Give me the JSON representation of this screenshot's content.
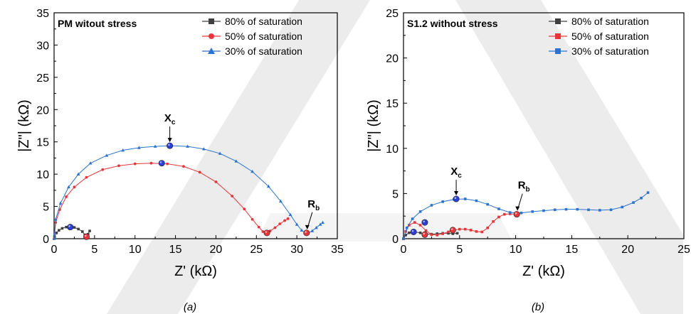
{
  "colors": {
    "s80": "#404040",
    "s50": "#e8353a",
    "s30": "#2a73d0",
    "special_point": "#2a3fd6",
    "special_point_red": "#e8353a",
    "watermark": "#ececec"
  },
  "chart_data": [
    {
      "type": "scatter",
      "panel_caption": "(a)",
      "title": "PM witout stress",
      "xlabel": "Z' (kΩ)",
      "ylabel": "|Z\"| (kΩ)",
      "xlim": [
        0,
        35
      ],
      "ylim": [
        0,
        35
      ],
      "xticks": [
        0,
        5,
        10,
        15,
        20,
        25,
        30,
        35
      ],
      "yticks": [
        0,
        5,
        10,
        15,
        20,
        25,
        30,
        35
      ],
      "grid": false,
      "legend_position": "top-right",
      "series": [
        {
          "name": "80% of saturation",
          "color_key": "s80",
          "marker": "square",
          "x": [
            0.05,
            0.3,
            0.6,
            1.0,
            1.5,
            2.0,
            2.5,
            3.0,
            3.5,
            3.8,
            4.0,
            4.2,
            4.4
          ],
          "y": [
            0.3,
            0.9,
            1.3,
            1.6,
            1.8,
            1.85,
            1.75,
            1.5,
            1.1,
            0.6,
            0.3,
            0.7,
            1.2
          ]
        },
        {
          "name": "50% of saturation",
          "color_key": "s50",
          "marker": "circle",
          "x": [
            0,
            0.2,
            0.7,
            1.5,
            2.5,
            4.0,
            6.0,
            8.0,
            10.0,
            12.0,
            14.0,
            16.0,
            18.0,
            20.0,
            22.0,
            23.5,
            24.5,
            25.3,
            25.8,
            26.2,
            26.7,
            27.3,
            27.9,
            28.5,
            28.9
          ],
          "y": [
            0,
            2.5,
            4.5,
            6.5,
            8.0,
            9.5,
            10.7,
            11.3,
            11.6,
            11.7,
            11.6,
            11.2,
            10.3,
            8.8,
            6.6,
            4.6,
            3.0,
            1.8,
            1.1,
            0.9,
            1.2,
            1.7,
            2.3,
            2.8,
            3.1
          ]
        },
        {
          "name": "30% of saturation",
          "color_key": "s30",
          "marker": "triangle",
          "x": [
            0,
            0.2,
            0.8,
            1.8,
            3.0,
            4.5,
            6.5,
            8.5,
            10.5,
            12.5,
            14.5,
            16.5,
            18.5,
            20.5,
            22.5,
            24.5,
            26.5,
            28.0,
            29.2,
            30.0,
            30.6,
            31.0,
            31.4,
            31.9,
            32.4,
            32.9,
            33.2
          ],
          "y": [
            0,
            3.0,
            5.5,
            8.0,
            10.0,
            11.7,
            12.9,
            13.7,
            14.1,
            14.3,
            14.4,
            14.3,
            13.9,
            13.2,
            12.0,
            10.4,
            8.1,
            5.8,
            3.7,
            2.2,
            1.3,
            0.9,
            0.9,
            1.2,
            1.7,
            2.2,
            2.5
          ]
        }
      ],
      "markers": [
        {
          "label_main": "X",
          "label_sub": "c",
          "x": 14.3,
          "y": 14.4,
          "color_key": "special_point",
          "annotate": true
        },
        {
          "label_main": "R",
          "label_sub": "b",
          "x": 31.2,
          "y": 0.9,
          "color_key": "special_point_red",
          "annotate": true
        },
        {
          "x": 13.3,
          "y": 11.7,
          "color_key": "special_point"
        },
        {
          "x": 26.3,
          "y": 0.9,
          "color_key": "special_point_red"
        },
        {
          "x": 2.0,
          "y": 1.8,
          "color_key": "special_point"
        },
        {
          "x": 4.0,
          "y": 0.3,
          "color_key": "special_point_red"
        }
      ]
    },
    {
      "type": "scatter",
      "panel_caption": "(b)",
      "title": "S1.2 without stress",
      "xlabel": "Z' (kΩ)",
      "ylabel": "|Z\"| (kΩ)",
      "xlim": [
        0,
        25
      ],
      "ylim": [
        0,
        25
      ],
      "xticks": [
        0,
        5,
        10,
        15,
        20,
        25
      ],
      "yticks": [
        0,
        5,
        10,
        15,
        20,
        25
      ],
      "grid": false,
      "legend_position": "top-right",
      "series": [
        {
          "name": "80% of saturation",
          "color_key": "s80",
          "marker": "square",
          "x": [
            0,
            0.2,
            0.5,
            1.0,
            1.5,
            2.0,
            2.5,
            3.0,
            3.5,
            4.0,
            4.4,
            4.8
          ],
          "y": [
            0,
            0.4,
            0.65,
            0.75,
            0.65,
            0.5,
            0.5,
            0.55,
            0.6,
            0.6,
            0.55,
            0.6
          ]
        },
        {
          "name": "50% of saturation",
          "color_key": "s50",
          "marker": "square",
          "x": [
            0,
            0.2,
            0.5,
            1.0,
            1.5,
            2.0,
            2.5,
            3.0,
            3.5,
            4.0,
            4.5,
            5.0,
            5.5,
            6.0,
            6.5,
            7.0,
            7.5,
            8.0,
            8.5,
            9.0,
            9.5,
            10.0
          ],
          "y": [
            0,
            0.8,
            1.5,
            1.8,
            1.5,
            0.9,
            0.45,
            0.4,
            0.55,
            0.75,
            0.95,
            1.05,
            1.05,
            0.95,
            0.8,
            0.75,
            1.2,
            1.9,
            2.4,
            2.7,
            2.75,
            2.7
          ]
        },
        {
          "name": "30% of saturation",
          "color_key": "s30",
          "marker": "square",
          "x": [
            0,
            0.3,
            0.8,
            1.5,
            2.5,
            3.5,
            4.5,
            5.5,
            6.5,
            7.5,
            8.5,
            9.5,
            10.5,
            11.5,
            12.5,
            13.5,
            14.5,
            15.5,
            16.5,
            17.5,
            18.5,
            19.5,
            20.5,
            21.2,
            21.8
          ],
          "y": [
            0,
            1.2,
            2.2,
            3.0,
            3.7,
            4.1,
            4.35,
            4.4,
            4.2,
            3.8,
            3.3,
            2.9,
            2.85,
            3.0,
            3.1,
            3.2,
            3.25,
            3.25,
            3.2,
            3.15,
            3.2,
            3.5,
            4.0,
            4.5,
            5.1
          ]
        }
      ],
      "markers": [
        {
          "label_main": "X",
          "label_sub": "c",
          "x": 4.7,
          "y": 4.4,
          "color_key": "special_point",
          "annotate": true
        },
        {
          "label_main": "R",
          "label_sub": "b",
          "x": 10.1,
          "y": 2.7,
          "color_key": "special_point_red",
          "annotate": true
        },
        {
          "x": 1.9,
          "y": 1.8,
          "color_key": "special_point"
        },
        {
          "x": 0.9,
          "y": 0.75,
          "color_key": "special_point"
        },
        {
          "x": 1.9,
          "y": 0.45,
          "color_key": "special_point_red"
        },
        {
          "x": 4.4,
          "y": 0.95,
          "color_key": "special_point_red"
        }
      ]
    }
  ]
}
